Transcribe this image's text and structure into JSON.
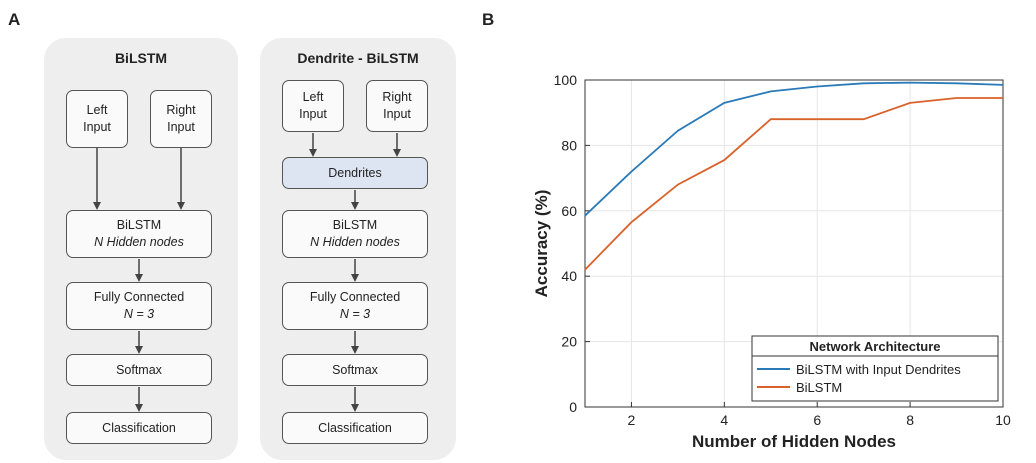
{
  "panel_a": {
    "letter": "A",
    "left_title": "BiLSTM",
    "right_title": "Dendrite - BiLSTM",
    "left_input": [
      "Left",
      "Input"
    ],
    "right_input": [
      "Right",
      "Input"
    ],
    "dendrites": "Dendrites",
    "bilstm": "BiLSTM",
    "bilstm_nodes": "N Hidden nodes",
    "fully_connected": "Fully Connected",
    "fc_n": "N = 3",
    "softmax": "Softmax",
    "classification": "Classification"
  },
  "panel_b": {
    "letter": "B"
  },
  "chart_data": {
    "type": "line",
    "xlabel": "Number of Hidden Nodes",
    "ylabel": "Accuracy (%)",
    "xlim": [
      1,
      10
    ],
    "ylim": [
      0,
      100
    ],
    "xticks": [
      2,
      4,
      6,
      8,
      10
    ],
    "yticks": [
      0,
      20,
      40,
      60,
      80,
      100
    ],
    "grid": true,
    "legend_title": "Network Architecture",
    "legend_position": "bottom-right",
    "x": [
      1,
      2,
      3,
      4,
      5,
      6,
      7,
      8,
      9,
      10
    ],
    "series": [
      {
        "name": "BiLSTM with Input Dendrites",
        "color": "#2a7ab8",
        "values": [
          58.5,
          72,
          84.5,
          93,
          96.5,
          98,
          99,
          99.2,
          99,
          98.5
        ]
      },
      {
        "name": "BiLSTM",
        "color": "#d9622b",
        "values": [
          42,
          56.5,
          68,
          75.5,
          88,
          88,
          88,
          93,
          94.5,
          94.5
        ]
      }
    ]
  }
}
